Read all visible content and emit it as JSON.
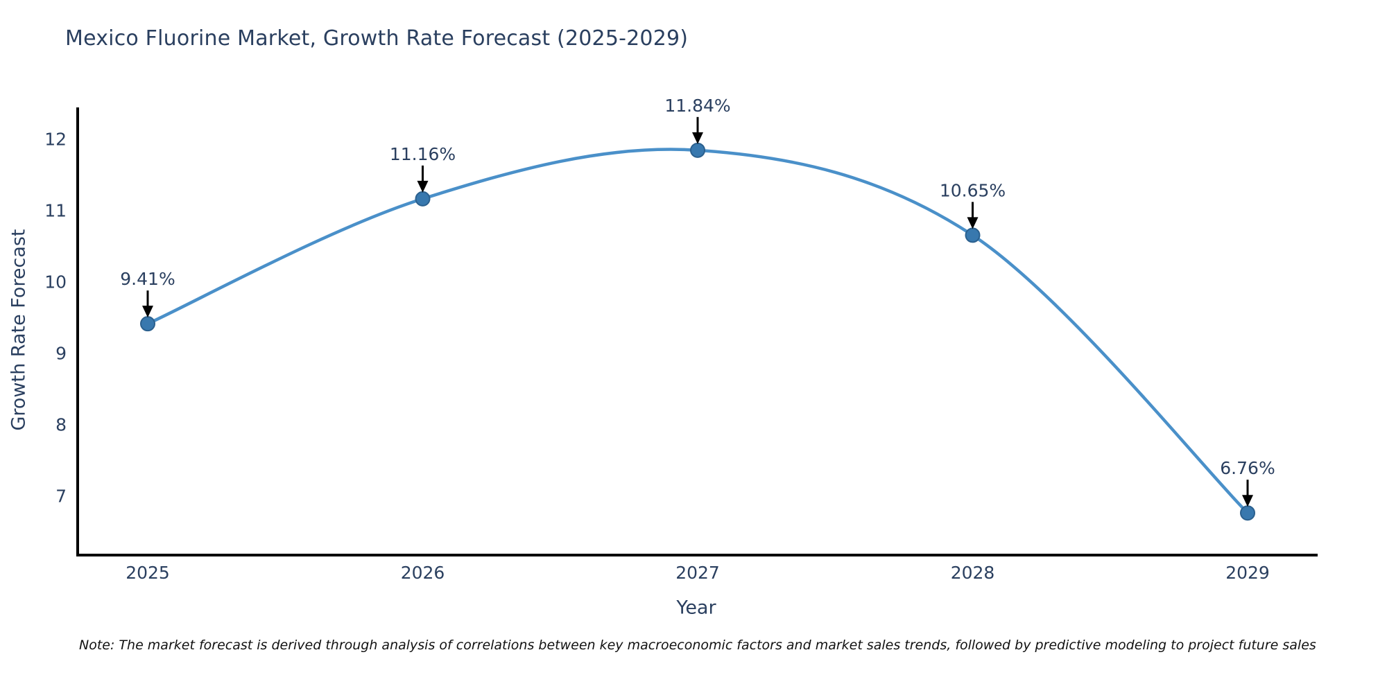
{
  "title": "Mexico Fluorine Market, Growth Rate Forecast (2025-2029)",
  "note": "Note: The market forecast is derived through analysis of correlations between key macroeconomic factors and market sales trends, followed by predictive modeling to project future sales",
  "chart_data": {
    "type": "line",
    "title": "Mexico Fluorine Market, Growth Rate Forecast (2025-2029)",
    "xlabel": "Year",
    "ylabel": "Growth Rate Forecast",
    "categories": [
      "2025",
      "2026",
      "2027",
      "2028",
      "2029"
    ],
    "values": [
      9.41,
      11.16,
      11.84,
      10.65,
      6.76
    ],
    "point_labels": [
      "9.41%",
      "11.16%",
      "11.84%",
      "10.65%",
      "6.76%"
    ],
    "y_ticks": [
      7,
      8,
      9,
      10,
      11,
      12
    ],
    "ylim": [
      6.17,
      12.44
    ],
    "line_shape": "spline",
    "grid": false,
    "legend": "none",
    "colors": {
      "line": "#4a90c9",
      "marker_fill": "#3878ae",
      "marker_edge": "#2b608e",
      "axis": "#000000",
      "tick_text": "#2a3f5f",
      "annotation_text": "#2a3f5f",
      "annotation_arrow": "#000000",
      "title_text": "#2a3f5f",
      "background": "#ffffff"
    }
  }
}
